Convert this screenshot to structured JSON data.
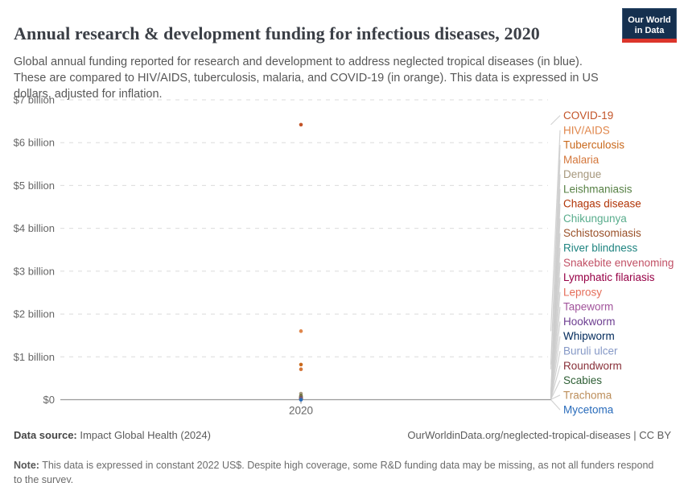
{
  "header": {
    "title": "Annual research & development funding for infectious diseases, 2020",
    "subtitle": "Global annual funding reported for research and development to address neglected tropical diseases (in blue). These are compared to HIV/AIDS, tuberculosis, malaria, and COVID-19 (in orange). This data is expressed in US dollars, adjusted for inflation.",
    "logo": {
      "line1": "Our World",
      "line2": "in Data"
    }
  },
  "chart_data": {
    "type": "scatter",
    "title": "Annual research & development funding for infectious diseases, 2020",
    "x": [
      2020
    ],
    "x_tick_label": "2020",
    "unit": "US$ billions",
    "ylim": [
      0,
      7
    ],
    "grid": "horizontal-dashed",
    "legend_position": "right",
    "y_ticks": [
      {
        "value": 0,
        "label": "$0"
      },
      {
        "value": 1,
        "label": "$1 billion"
      },
      {
        "value": 2,
        "label": "$2 billion"
      },
      {
        "value": 3,
        "label": "$3 billion"
      },
      {
        "value": 4,
        "label": "$4 billion"
      },
      {
        "value": 5,
        "label": "$5 billion"
      },
      {
        "value": 6,
        "label": "$6 billion"
      },
      {
        "value": 7,
        "label": "$7 billion"
      }
    ],
    "series": [
      {
        "name": "COVID-19",
        "value_billion": 6.42,
        "color": "#C35428",
        "group": "comparator-orange"
      },
      {
        "name": "HIV/AIDS",
        "value_billion": 1.6,
        "color": "#E0874C",
        "group": "comparator-orange"
      },
      {
        "name": "Tuberculosis",
        "value_billion": 0.82,
        "color": "#C96A1E",
        "group": "comparator-orange"
      },
      {
        "name": "Malaria",
        "value_billion": 0.71,
        "color": "#D4773B",
        "group": "comparator-orange"
      },
      {
        "name": "Dengue",
        "value_billion": 0.14,
        "color": "#A6977C",
        "group": "neglected-tropical-disease"
      },
      {
        "name": "Leishmaniasis",
        "value_billion": 0.09,
        "color": "#578145",
        "group": "neglected-tropical-disease"
      },
      {
        "name": "Chagas disease",
        "value_billion": 0.07,
        "color": "#B13507",
        "group": "neglected-tropical-disease"
      },
      {
        "name": "Chikungunya",
        "value_billion": 0.06,
        "color": "#58AC8C",
        "group": "neglected-tropical-disease"
      },
      {
        "name": "Schistosomiasis",
        "value_billion": 0.05,
        "color": "#9A5129",
        "group": "neglected-tropical-disease"
      },
      {
        "name": "River blindness",
        "value_billion": 0.04,
        "color": "#1F8480",
        "group": "neglected-tropical-disease"
      },
      {
        "name": "Snakebite envenoming",
        "value_billion": 0.03,
        "color": "#C15065",
        "group": "neglected-tropical-disease"
      },
      {
        "name": "Lymphatic filariasis",
        "value_billion": 0.028,
        "color": "#970046",
        "group": "neglected-tropical-disease"
      },
      {
        "name": "Leprosy",
        "value_billion": 0.022,
        "color": "#E56E5A",
        "group": "neglected-tropical-disease"
      },
      {
        "name": "Tapeworm",
        "value_billion": 0.018,
        "color": "#A2559C",
        "group": "neglected-tropical-disease"
      },
      {
        "name": "Hookworm",
        "value_billion": 0.015,
        "color": "#6D3E91",
        "group": "neglected-tropical-disease"
      },
      {
        "name": "Whipworm",
        "value_billion": 0.013,
        "color": "#00295B",
        "group": "neglected-tropical-disease"
      },
      {
        "name": "Buruli ulcer",
        "value_billion": 0.011,
        "color": "#8598C6",
        "group": "neglected-tropical-disease"
      },
      {
        "name": "Roundworm",
        "value_billion": 0.009,
        "color": "#883039",
        "group": "neglected-tropical-disease"
      },
      {
        "name": "Scabies",
        "value_billion": 0.007,
        "color": "#2D5E34",
        "group": "neglected-tropical-disease"
      },
      {
        "name": "Trachoma",
        "value_billion": 0.005,
        "color": "#BC8E5A",
        "group": "neglected-tropical-disease"
      },
      {
        "name": "Mycetoma",
        "value_billion": 0.001,
        "color": "#286BBB",
        "group": "neglected-tropical-disease"
      }
    ]
  },
  "footer": {
    "datasource_label": "Data source:",
    "datasource_value": " Impact Global Health (2024)",
    "url": "OurWorldinData.org/neglected-tropical-diseases",
    "separator": " | ",
    "license": "CC BY",
    "note_label": "Note:",
    "note_text": " This data is expressed in constant 2022 US$. Despite high coverage, some R&D funding data may be missing, as not all funders respond to the survey."
  },
  "colors": {
    "grid": "#dbdbdb",
    "axis": "#9a9a9a",
    "tick_text": "#666666",
    "connector": "#cccccc",
    "logo_bg": "#15304f",
    "logo_stripe": "#dc352b"
  }
}
